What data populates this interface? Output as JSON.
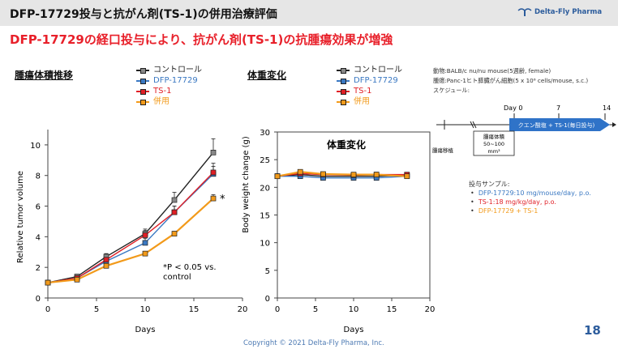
{
  "header": {
    "title": "DFP-17729投与と抗がん剤(TS-1)の併用治療評価",
    "logo_text": "Delta-Fly Pharma",
    "headline": "DFP-17729の経口投与により、抗がん剤(TS-1)の抗腫瘍効果が増強"
  },
  "sections": {
    "tumor": "腫瘍体積推移",
    "weight": "体重変化"
  },
  "legend": [
    {
      "label": "コントロール",
      "color": "#222222",
      "marker": "#888888",
      "label_color": "#222222"
    },
    {
      "label": "DFP-17729",
      "color": "#3a78c2",
      "marker": "#3a78c2",
      "label_color": "#3a78c2"
    },
    {
      "label": "TS-1",
      "color": "#e01f26",
      "marker": "#e01f26",
      "label_color": "#e01f26"
    },
    {
      "label": "併用",
      "color": "#f29a1a",
      "marker": "#f29a1a",
      "label_color": "#f29a1a"
    }
  ],
  "chart_data": [
    {
      "type": "line",
      "xlabel": "Days",
      "ylabel": "Relative tumor volume",
      "xlim": [
        0,
        20
      ],
      "ylim": [
        0,
        11
      ],
      "xticks": [
        0,
        5,
        10,
        15,
        20
      ],
      "yticks": [
        0,
        2,
        4,
        6,
        8,
        10
      ],
      "series": [
        {
          "name": "コントロール",
          "x": [
            0,
            3,
            6,
            10,
            13,
            17
          ],
          "y": [
            1.0,
            1.4,
            2.7,
            4.2,
            6.4,
            9.5
          ],
          "err": [
            0.1,
            0.15,
            0.2,
            0.3,
            0.5,
            0.9
          ]
        },
        {
          "name": "DFP-17729",
          "x": [
            0,
            3,
            6,
            10,
            13,
            17
          ],
          "y": [
            1.0,
            1.3,
            2.4,
            3.6,
            5.6,
            8.1
          ],
          "err": [
            0.1,
            0.1,
            0.2,
            0.3,
            0.4,
            0.5
          ]
        },
        {
          "name": "TS-1",
          "x": [
            0,
            3,
            6,
            10,
            13,
            17
          ],
          "y": [
            1.0,
            1.3,
            2.5,
            4.1,
            5.6,
            8.2
          ],
          "err": [
            0.1,
            0.1,
            0.2,
            0.3,
            0.4,
            0.6
          ]
        },
        {
          "name": "併用",
          "x": [
            0,
            3,
            6,
            10,
            13,
            17
          ],
          "y": [
            1.0,
            1.2,
            2.1,
            2.9,
            4.2,
            6.5
          ],
          "err": [
            0.05,
            0.1,
            0.1,
            0.15,
            0.15,
            0.25
          ]
        }
      ],
      "significance_mark": "*",
      "annotation_line1": "*P < 0.05 vs.",
      "annotation_line2": "control"
    },
    {
      "type": "line",
      "title": "体重変化",
      "xlabel": "Days",
      "ylabel": "Body weight change (g)",
      "xlim": [
        0,
        20
      ],
      "ylim": [
        0,
        30
      ],
      "xticks": [
        0,
        5,
        10,
        15,
        20
      ],
      "yticks": [
        0,
        5,
        10,
        15,
        20,
        25,
        30
      ],
      "series": [
        {
          "name": "コントロール",
          "x": [
            0,
            3,
            6,
            10,
            13,
            17
          ],
          "y": [
            22.0,
            22.3,
            22.0,
            22.0,
            22.0,
            22.2
          ]
        },
        {
          "name": "DFP-17729",
          "x": [
            0,
            3,
            6,
            10,
            13,
            17
          ],
          "y": [
            22.0,
            22.0,
            21.7,
            21.7,
            21.7,
            22.0
          ]
        },
        {
          "name": "TS-1",
          "x": [
            0,
            3,
            6,
            10,
            13,
            17
          ],
          "y": [
            22.0,
            22.5,
            22.3,
            22.2,
            22.3,
            22.3
          ]
        },
        {
          "name": "併用",
          "x": [
            0,
            3,
            6,
            10,
            13,
            17
          ],
          "y": [
            22.0,
            22.8,
            22.4,
            22.3,
            22.3,
            22.0
          ]
        }
      ]
    }
  ],
  "info": {
    "animal": "動物:BALB/c nu/nu mouse(5週齢, female)",
    "tumor": "腫瘍:Panc-1ヒト膵臓がん細胞(5 x 10⁶ cells/mouse, s.c.)",
    "schedule": "スケジュール:",
    "day0": "Day 0",
    "day7": "7",
    "day14": "14",
    "arrow_label": "クエン酸塩 + TS-1(毎日投与)",
    "tumor_box_line1": "腫瘍体積",
    "tumor_box_line2": "50~100",
    "tumor_box_line3": "mm³",
    "transplant": "腫瘍移植",
    "dosing_title": "投与サンプル:",
    "dosing": [
      {
        "text": "DFP-17729:10 mg/mouse/day, p.o.",
        "color": "#3a78c2"
      },
      {
        "text": "TS-1:18 mg/kg/day, p.o.",
        "color": "#e01f26"
      },
      {
        "text": "DFP-17729 + TS-1",
        "color": "#f29a1a"
      }
    ]
  },
  "footer": "Copyright © 2021  Delta-Fly Pharma, Inc.",
  "page_number": "18"
}
